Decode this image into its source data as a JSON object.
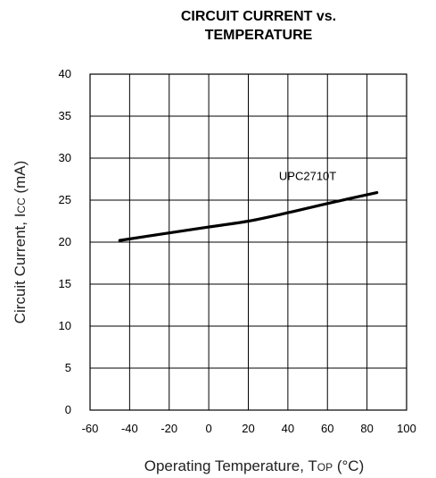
{
  "chart_data": {
    "type": "line",
    "title_line1": "CIRCUIT CURRENT vs.",
    "title_line2": "TEMPERATURE",
    "xlabel": {
      "main": "Operating Temperature, T",
      "sub": "OP",
      "unit": " (°C)"
    },
    "ylabel": {
      "main": "Circuit Current, I",
      "sub": "CC",
      "unit": " (mA)"
    },
    "xlim": [
      -60,
      100
    ],
    "ylim": [
      0,
      40
    ],
    "xticks": [
      -60,
      -40,
      -20,
      0,
      20,
      40,
      60,
      80,
      100
    ],
    "yticks": [
      0,
      5,
      10,
      15,
      20,
      25,
      30,
      35,
      40
    ],
    "grid": true,
    "series": [
      {
        "name": "UPC2710T",
        "color": "#000000",
        "x": [
          -45,
          -20,
          0,
          20,
          40,
          60,
          85
        ],
        "y": [
          20.2,
          21.1,
          21.8,
          22.5,
          23.5,
          24.6,
          25.9
        ]
      }
    ]
  }
}
